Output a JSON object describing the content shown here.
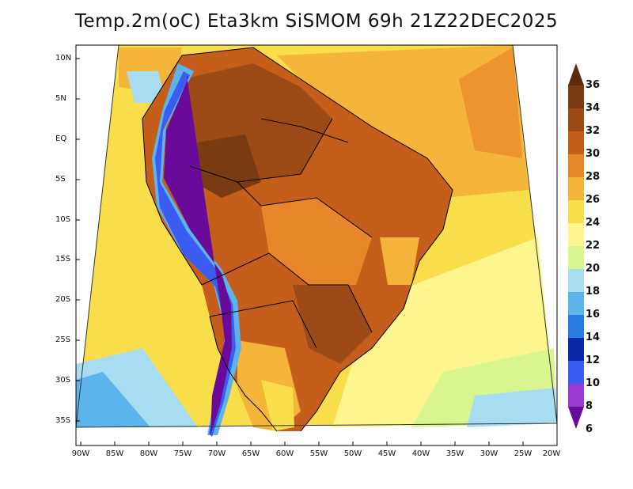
{
  "title": "Temp.2m(oC) Eta3km SiSMOM 69h 21Z22DEC2025",
  "lat_labels": [
    "10N",
    "5N",
    "EQ",
    "5S",
    "10S",
    "15S",
    "20S",
    "25S",
    "30S",
    "35S"
  ],
  "lon_labels": [
    "90W",
    "85W",
    "80W",
    "75W",
    "70W",
    "65W",
    "60W",
    "55W",
    "50W",
    "45W",
    "40W",
    "35W",
    "30W",
    "25W",
    "20W"
  ],
  "legend": {
    "labels": [
      "36",
      "34",
      "32",
      "30",
      "28",
      "26",
      "24",
      "22",
      "20",
      "18",
      "16",
      "14",
      "12",
      "10",
      "8",
      "6"
    ],
    "colors": [
      "#5b2b0c",
      "#7a3a12",
      "#9c4b17",
      "#c45e1a",
      "#e8862a",
      "#f5b53a",
      "#f8de4a",
      "#fdf68f",
      "#d8f590",
      "#a8dcf0",
      "#5cb4ec",
      "#2a7be0",
      "#0a2aa8",
      "#3b5cf0",
      "#9b3ad0",
      "#6a0a9a"
    ]
  },
  "colors": {
    "ocean_warm": "#f5b53a",
    "ocean_mild": "#f8de4a",
    "ocean_cool": "#fdf68f",
    "land_hot": "#9c4b17",
    "land_very_hot": "#7a3a12",
    "land_warm": "#c45e1a",
    "andes_cold": "#3b5cf0",
    "south_cool": "#5cb4ec"
  }
}
